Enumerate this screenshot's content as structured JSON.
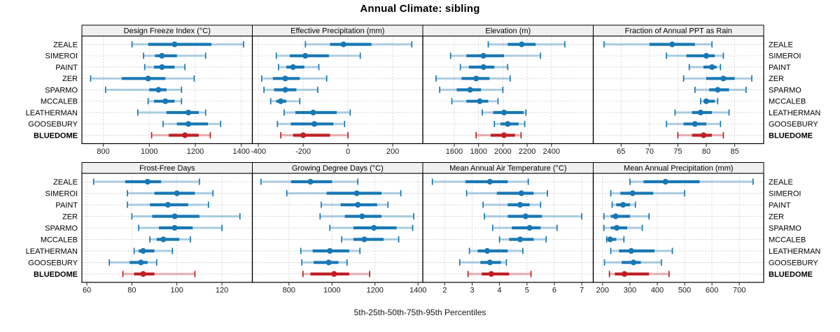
{
  "title": "Annual Climate: sibling",
  "footer": "5th-25th-50th-75th-95th Percentiles",
  "sites": [
    "ZEALE",
    "SIMEROI",
    "PAINT",
    "ZER",
    "SPARMO",
    "MCCALEB",
    "LEATHERMAN",
    "GOOSEBURY",
    "BLUEDOME"
  ],
  "highlight_site": "BLUEDOME",
  "colors": {
    "series": "#1878B4",
    "highlight": "#BF2026",
    "strip_bg": "#F0F0F0",
    "panel_border": "#000000",
    "grid": "#C6C6C6",
    "tick": "#222222",
    "text": "#1a1a1a"
  },
  "chart_data": {
    "type": "dotplot",
    "percentiles": [
      5,
      25,
      50,
      75,
      95
    ],
    "grid": {
      "rows": 2,
      "cols": 4
    },
    "panels": [
      {
        "title": "Design Freeze Index (°C)",
        "row": 0,
        "col": 0,
        "xlim": [
          707,
          1448
        ],
        "ticks": [
          800,
          1000,
          1200,
          1400
        ],
        "data": [
          [
            925,
            995,
            1110,
            1270,
            1410
          ],
          [
            975,
            1025,
            1055,
            1120,
            1245
          ],
          [
            980,
            1020,
            1055,
            1110,
            1155
          ],
          [
            745,
            880,
            995,
            1070,
            1195
          ],
          [
            810,
            1000,
            1040,
            1075,
            1140
          ],
          [
            995,
            1020,
            1070,
            1110,
            1140
          ],
          [
            950,
            1075,
            1170,
            1215,
            1245
          ],
          [
            1060,
            1120,
            1170,
            1255,
            1310
          ],
          [
            1010,
            1085,
            1155,
            1215,
            1265
          ]
        ]
      },
      {
        "title": "Effective Precipitation (mm)",
        "row": 0,
        "col": 1,
        "xlim": [
          -427,
          334
        ],
        "ticks": [
          -400,
          -200,
          0,
          200
        ],
        "data": [
          [
            -190,
            -80,
            -20,
            105,
            285
          ],
          [
            -320,
            -260,
            -190,
            -85,
            55
          ],
          [
            -310,
            -275,
            -245,
            -195,
            -130
          ],
          [
            -385,
            -335,
            -280,
            -215,
            -95
          ],
          [
            -375,
            -330,
            -280,
            -230,
            -135
          ],
          [
            -345,
            -320,
            -300,
            -275,
            -215
          ],
          [
            -285,
            -235,
            -155,
            -50,
            10
          ],
          [
            -315,
            -255,
            -150,
            -65,
            -15
          ],
          [
            -300,
            -245,
            -200,
            -80,
            0
          ]
        ]
      },
      {
        "title": "Elevation (m)",
        "row": 0,
        "col": 2,
        "xlim": [
          1341,
          2744
        ],
        "ticks": [
          1600,
          1800,
          2000,
          2200,
          2400
        ],
        "data": [
          [
            1880,
            2040,
            2155,
            2270,
            2510
          ],
          [
            1570,
            1700,
            1840,
            2010,
            2310
          ],
          [
            1650,
            1720,
            1840,
            1930,
            2040
          ],
          [
            1450,
            1660,
            1780,
            1890,
            2060
          ],
          [
            1480,
            1620,
            1730,
            1820,
            2000
          ],
          [
            1580,
            1700,
            1810,
            1880,
            1960
          ],
          [
            1830,
            1920,
            2010,
            2170,
            2190
          ],
          [
            1930,
            1980,
            2040,
            2130,
            2180
          ],
          [
            1780,
            1900,
            2010,
            2100,
            2150
          ]
        ]
      },
      {
        "title": "Fraction of Annual PPT as Rain",
        "row": 0,
        "col": 3,
        "xlim": [
          60.1,
          90.1
        ],
        "ticks": [
          65,
          70,
          75,
          80,
          85
        ],
        "data": [
          [
            62,
            70,
            74,
            78,
            81
          ],
          [
            73,
            76.5,
            80,
            81.5,
            83
          ],
          [
            77,
            79.5,
            81,
            81.8,
            82.5
          ],
          [
            76,
            80,
            83,
            85,
            88
          ],
          [
            78,
            80.5,
            82,
            84,
            87
          ],
          [
            79,
            79.5,
            80,
            81.5,
            82
          ],
          [
            74.5,
            77.5,
            79,
            81,
            84
          ],
          [
            73,
            76,
            78,
            80,
            82.5
          ],
          [
            75,
            77.5,
            79.5,
            81,
            83
          ]
        ]
      },
      {
        "title": "Frost-Free Days",
        "row": 1,
        "col": 0,
        "xlim": [
          57.8,
          133.5
        ],
        "ticks": [
          60,
          80,
          100,
          120
        ],
        "data": [
          [
            63,
            77,
            87,
            93,
            110
          ],
          [
            78,
            90,
            100,
            108,
            116
          ],
          [
            78,
            88,
            96,
            105,
            114
          ],
          [
            80,
            89,
            99,
            110,
            128
          ],
          [
            83,
            92,
            99,
            107,
            120
          ],
          [
            88,
            91,
            94,
            101,
            106
          ],
          [
            81,
            83,
            85,
            90,
            98
          ],
          [
            70,
            79,
            84,
            87,
            91
          ],
          [
            76,
            81,
            85,
            90,
            108
          ]
        ]
      },
      {
        "title": "Growing Degree Days (°C)",
        "row": 1,
        "col": 1,
        "xlim": [
          630,
          1422
        ],
        "ticks": [
          800,
          1000,
          1200,
          1400
        ],
        "data": [
          [
            670,
            810,
            900,
            1000,
            1120
          ],
          [
            790,
            975,
            1115,
            1230,
            1320
          ],
          [
            950,
            1040,
            1120,
            1210,
            1260
          ],
          [
            945,
            1060,
            1140,
            1230,
            1380
          ],
          [
            990,
            1100,
            1195,
            1300,
            1375
          ],
          [
            1045,
            1100,
            1150,
            1240,
            1310
          ],
          [
            855,
            910,
            990,
            1080,
            1130
          ],
          [
            860,
            915,
            985,
            1030,
            1070
          ],
          [
            865,
            900,
            1010,
            1080,
            1175
          ]
        ]
      },
      {
        "title": "Mean Annual Air Temperature (°C)",
        "row": 1,
        "col": 2,
        "xlim": [
          1.2,
          7.42
        ],
        "ticks": [
          2,
          3,
          4,
          5,
          6,
          7
        ],
        "data": [
          [
            1.55,
            2.75,
            3.65,
            4.3,
            5.05
          ],
          [
            2.8,
            3.9,
            4.8,
            5.25,
            5.75
          ],
          [
            3.4,
            4.3,
            4.75,
            5.1,
            5.5
          ],
          [
            3.45,
            4.3,
            4.95,
            5.55,
            7.0
          ],
          [
            3.75,
            4.45,
            5.1,
            5.5,
            6.1
          ],
          [
            4.0,
            4.35,
            4.75,
            5.25,
            5.7
          ],
          [
            2.9,
            3.2,
            3.55,
            4.3,
            4.85
          ],
          [
            2.55,
            3.3,
            3.65,
            4.05,
            4.25
          ],
          [
            2.85,
            3.35,
            3.7,
            4.35,
            5.15
          ]
        ]
      },
      {
        "title": "Mean Annual Precipitation (mm)",
        "row": 1,
        "col": 3,
        "xlim": [
          166,
          789
        ],
        "ticks": [
          200,
          300,
          400,
          500,
          600,
          700
        ],
        "data": [
          [
            300,
            350,
            430,
            555,
            750
          ],
          [
            230,
            265,
            310,
            385,
            500
          ],
          [
            235,
            250,
            275,
            300,
            320
          ],
          [
            205,
            230,
            248,
            300,
            370
          ],
          [
            205,
            230,
            252,
            290,
            345
          ],
          [
            215,
            222,
            228,
            250,
            278
          ],
          [
            230,
            260,
            305,
            390,
            455
          ],
          [
            207,
            270,
            313,
            340,
            415
          ],
          [
            225,
            245,
            280,
            370,
            443
          ]
        ]
      }
    ]
  }
}
